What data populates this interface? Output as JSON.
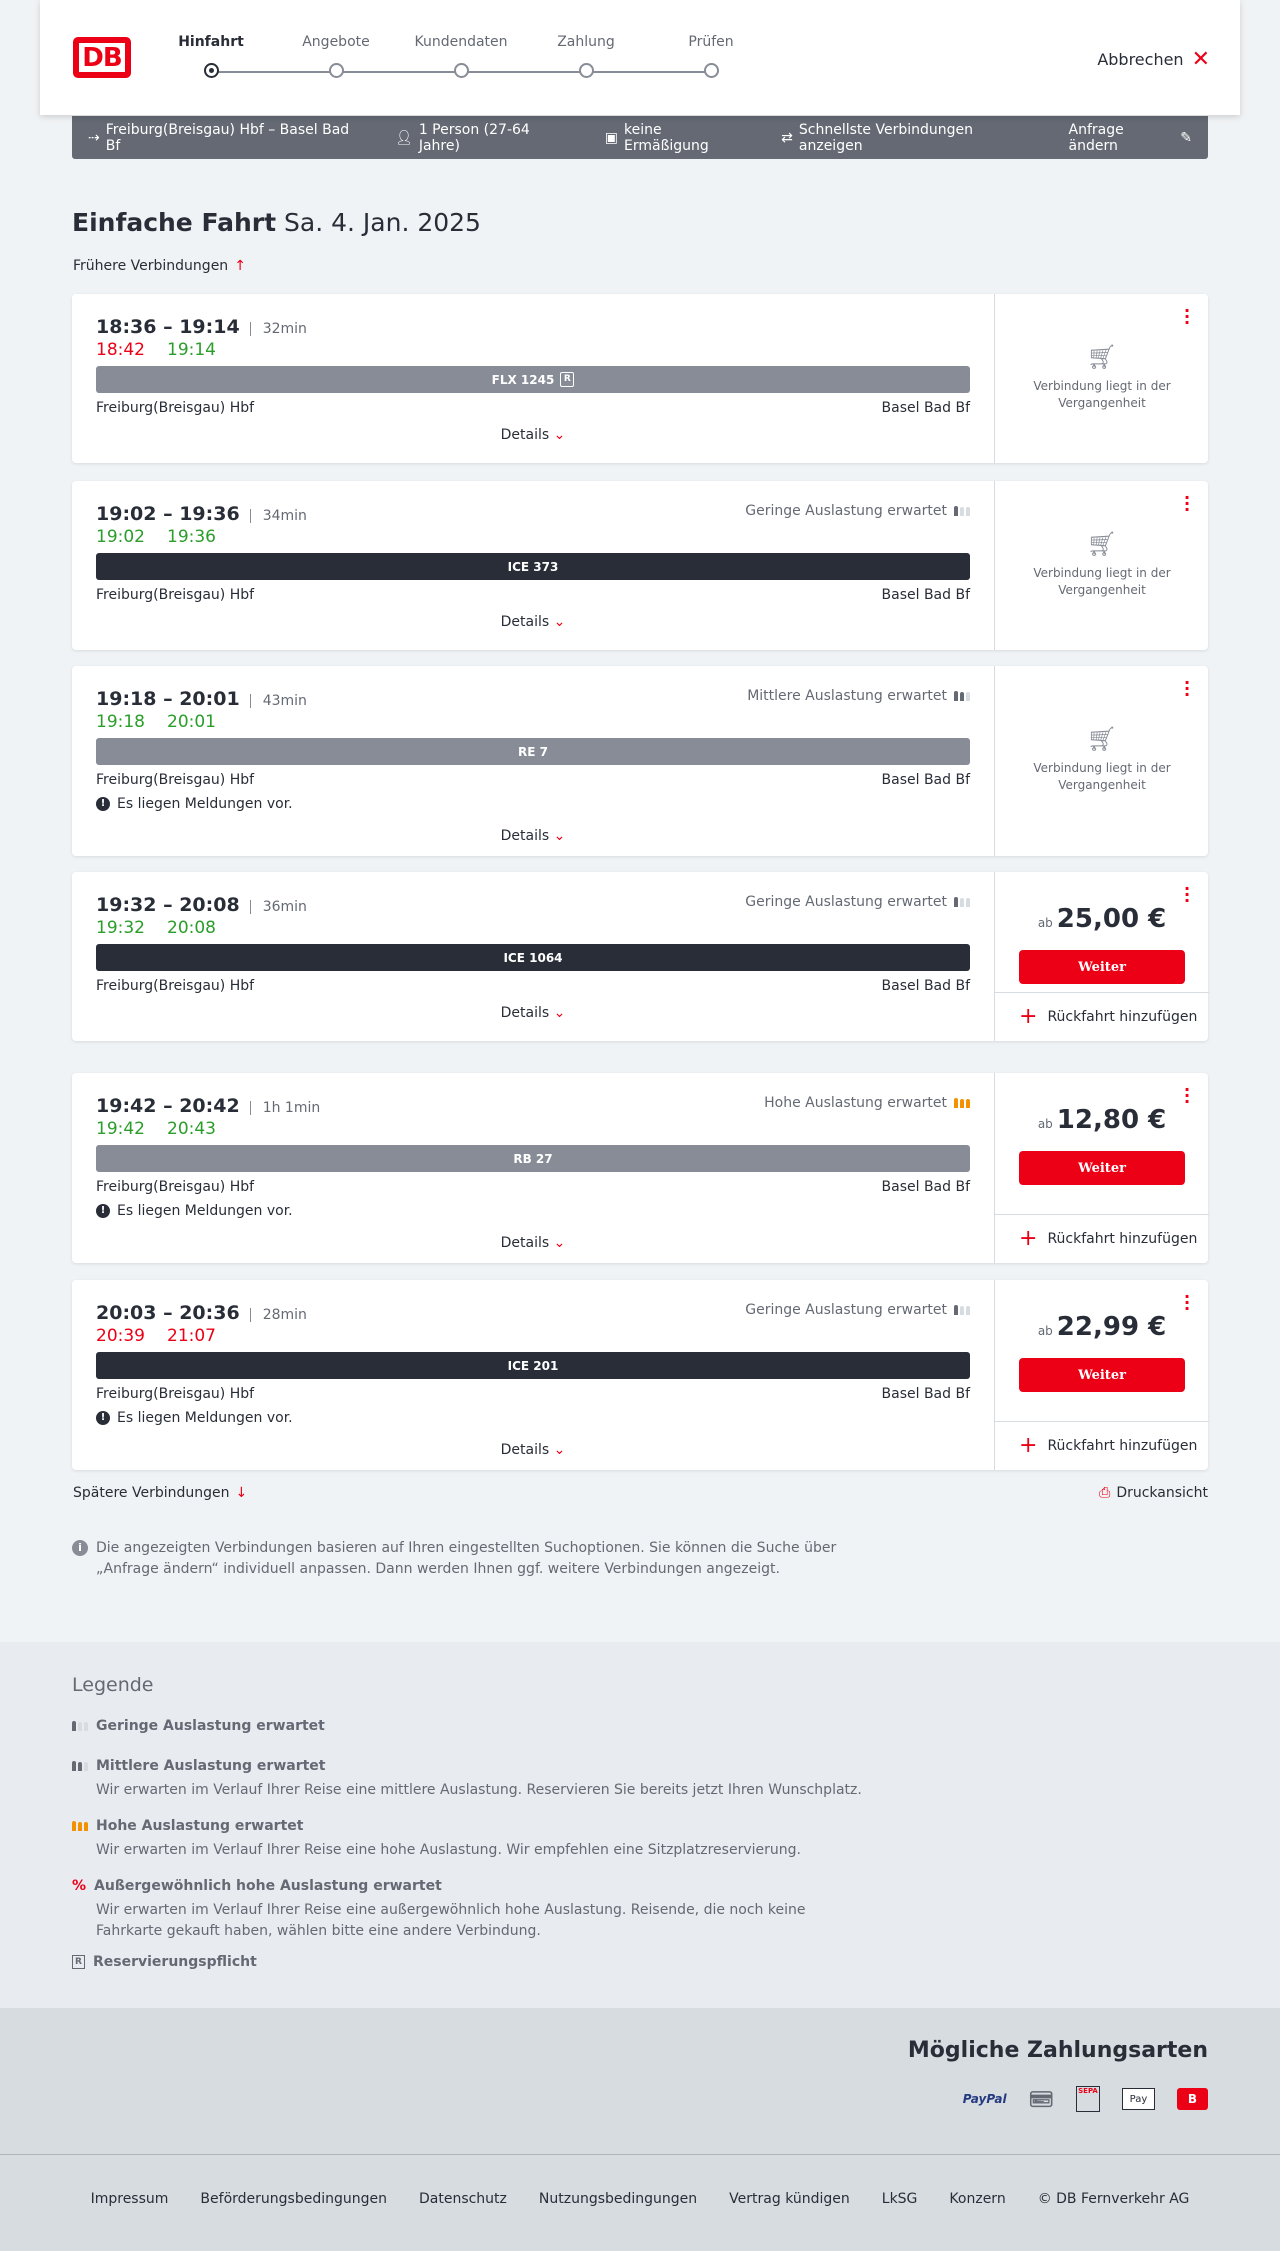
{
  "header": {
    "logo": "DB",
    "steps": [
      "Hinfahrt",
      "Angebote",
      "Kundendaten",
      "Zahlung",
      "Prüfen"
    ],
    "active_step": 0,
    "cancel": "Abbrechen"
  },
  "query": {
    "route": "Freiburg(Breisgau) Hbf – Basel Bad Bf",
    "persons": "1 Person (27-64 Jahre)",
    "discount": "keine Ermäßigung",
    "option": "Schnellste Verbindungen anzeigen",
    "edit": "Anfrage ändern"
  },
  "title": {
    "type": "Einfache Fahrt",
    "date": "Sa. 4. Jan. 2025"
  },
  "earlier": "Frühere Verbindungen",
  "later": "Spätere Verbindungen",
  "print": "Druckansicht",
  "details_label": "Details",
  "past_label": "Verbindung liegt in der Vergangenheit",
  "price_prefix": "ab",
  "continue_label": "Weiter",
  "return_label": "Rückfahrt hinzufügen",
  "message_label": "Es liegen Meldungen vor.",
  "from": "Freiburg(Breisgau) Hbf",
  "to": "Basel Bad Bf",
  "connections": [
    {
      "times": "18:36 – 19:14",
      "duration": "32min",
      "rt_dep": "18:42",
      "rt_dep_late": true,
      "rt_arr": "19:14",
      "rt_arr_late": false,
      "load": "",
      "load_level": 0,
      "train": "FLX 1245",
      "reservation": "R",
      "bar": "gray",
      "message": false,
      "past": true,
      "price": ""
    },
    {
      "times": "19:02 – 19:36",
      "duration": "34min",
      "rt_dep": "19:02",
      "rt_dep_late": false,
      "rt_arr": "19:36",
      "rt_arr_late": false,
      "load": "Geringe Auslastung erwartet",
      "load_level": 1,
      "train": "ICE 373",
      "bar": "dark",
      "message": false,
      "past": true,
      "price": ""
    },
    {
      "times": "19:18 – 20:01",
      "duration": "43min",
      "rt_dep": "19:18",
      "rt_dep_late": false,
      "rt_arr": "20:01",
      "rt_arr_late": false,
      "load": "Mittlere Auslastung erwartet",
      "load_level": 2,
      "train": "RE 7",
      "bar": "gray",
      "message": true,
      "past": true,
      "price": ""
    },
    {
      "times": "19:32 – 20:08",
      "duration": "36min",
      "rt_dep": "19:32",
      "rt_dep_late": false,
      "rt_arr": "20:08",
      "rt_arr_late": false,
      "load": "Geringe Auslastung erwartet",
      "load_level": 1,
      "train": "ICE 1064",
      "bar": "dark",
      "message": false,
      "past": false,
      "price": "25,00 €"
    },
    {
      "times": "19:42 – 20:42",
      "duration": "1h 1min",
      "rt_dep": "19:42",
      "rt_dep_late": false,
      "rt_arr": "20:43",
      "rt_arr_late": false,
      "load": "Hohe Auslastung erwartet",
      "load_level": 3,
      "train": "RB 27",
      "bar": "gray",
      "message": true,
      "past": false,
      "price": "12,80 €"
    },
    {
      "times": "20:03 – 20:36",
      "duration": "28min",
      "rt_dep": "20:39",
      "rt_dep_late": true,
      "rt_arr": "21:07",
      "rt_arr_late": true,
      "load": "Geringe Auslastung erwartet",
      "load_level": 1,
      "train": "ICE 201",
      "bar": "dark",
      "message": true,
      "past": false,
      "price": "22,99 €"
    }
  ],
  "info": "Die angezeigten Verbindungen basieren auf Ihren eingestellten Suchoptionen. Sie können die Suche über „Anfrage ändern“ individuell anpassen. Dann werden Ihnen ggf. weitere Verbindungen angezeigt.",
  "legend": {
    "title": "Legende",
    "items": [
      {
        "title": "Geringe Auslastung erwartet",
        "text": ""
      },
      {
        "title": "Mittlere Auslastung erwartet",
        "text": "Wir erwarten im Verlauf Ihrer Reise eine mittlere Auslastung. Reservieren Sie bereits jetzt Ihren Wunschplatz."
      },
      {
        "title": "Hohe Auslastung erwartet",
        "text": "Wir erwarten im Verlauf Ihrer Reise eine hohe Auslastung. Wir empfehlen eine Sitzplatzreservierung."
      },
      {
        "title": "Außergewöhnlich hohe Auslastung erwartet",
        "text": "Wir erwarten im Verlauf Ihrer Reise eine außergewöhnlich hohe Auslastung. Reisende, die noch keine Fahrkarte gekauft haben, wählen bitte eine andere Verbindung."
      },
      {
        "title": "Reservierungspflicht",
        "text": ""
      }
    ]
  },
  "payment": {
    "title": "Mögliche Zahlungsarten",
    "methods": [
      "PayPal",
      "Kreditkarte",
      "SEPA",
      "Apple Pay",
      "Bahnbonus"
    ]
  },
  "footer": [
    "Impressum",
    "Beförderungsbedingungen",
    "Datenschutz",
    "Nutzungsbedingungen",
    "Vertrag kündigen",
    "LkSG",
    "Konzern",
    "© DB Fernverkehr AG"
  ],
  "colors": {
    "accent": "#ec0016",
    "dark": "#282d37",
    "gray": "#878c96",
    "ok": "#2a9d2a",
    "high_load": "#f39200"
  }
}
